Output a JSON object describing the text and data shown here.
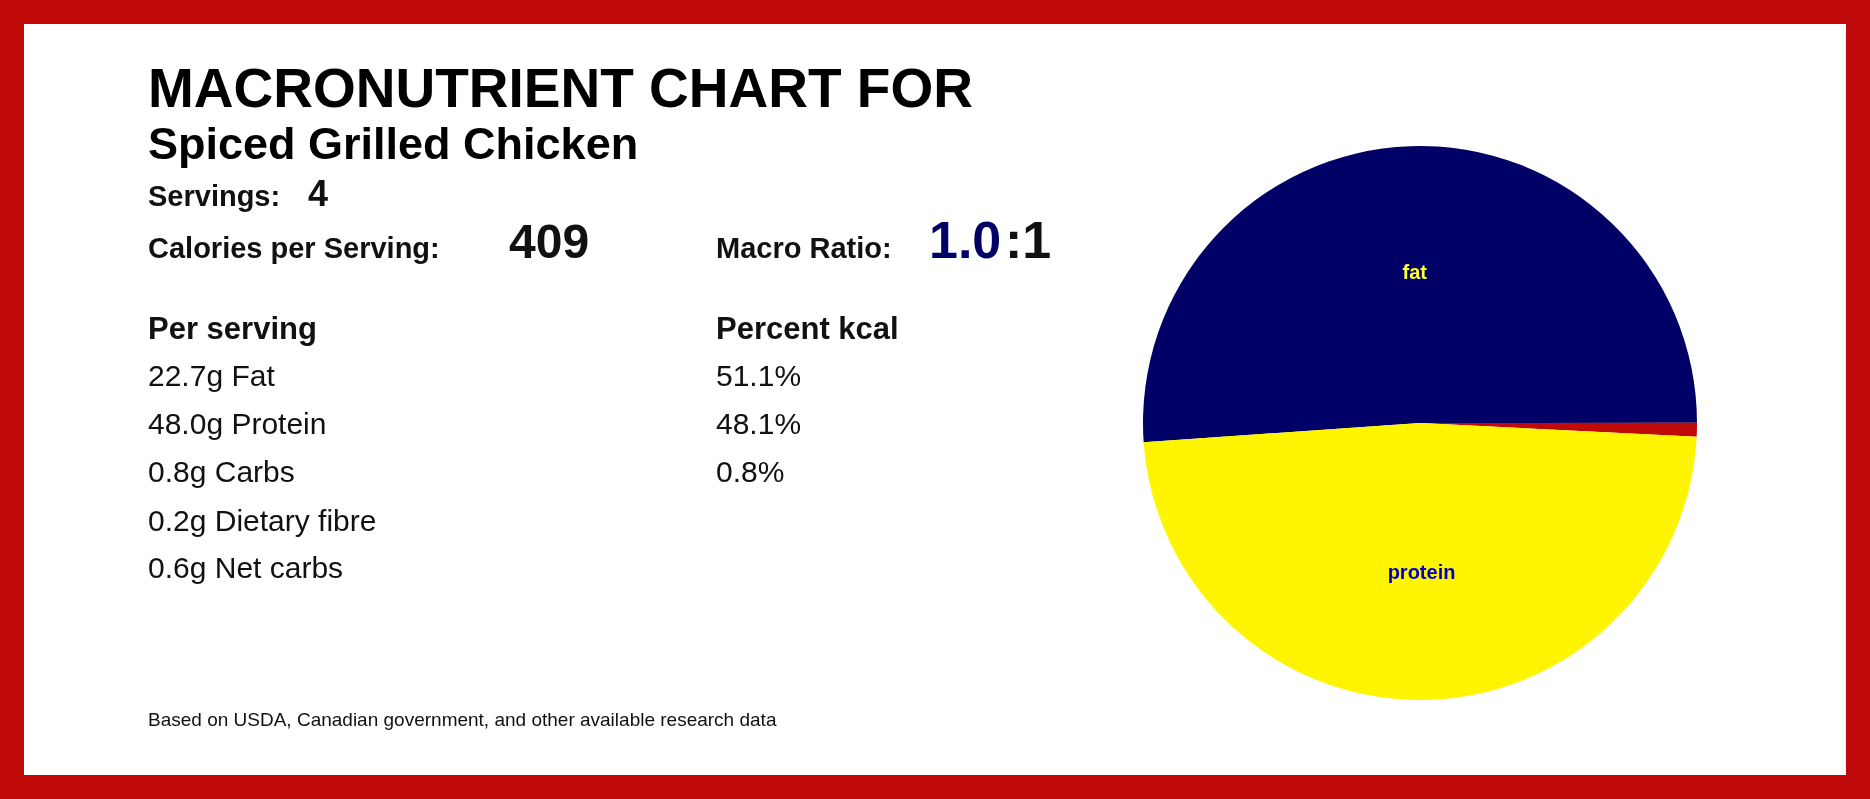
{
  "chart_data": {
    "type": "pie",
    "title": "MACRONUTRIENT CHART FOR",
    "subtitle": "Spiced Grilled Chicken",
    "categories": [
      "fat",
      null,
      "protein"
    ],
    "values": [
      51.1,
      0.8,
      48.1
    ],
    "colors": [
      "#000066",
      "#c00a0a",
      "#fff500"
    ],
    "annotations": [
      "Servings:",
      "4",
      "Calories per Serving:",
      "409",
      "Macro Ratio:",
      "1.0",
      ":1",
      "Per serving",
      "22.7g Fat",
      "48.0g Protein",
      "0.8g Carbs",
      "0.2g Dietary fibre",
      "0.6g Net carbs",
      "Percent kcal",
      "51.1%",
      "48.1%",
      "0.8%",
      "Based on USDA, Canadian government, and other available research data"
    ]
  }
}
